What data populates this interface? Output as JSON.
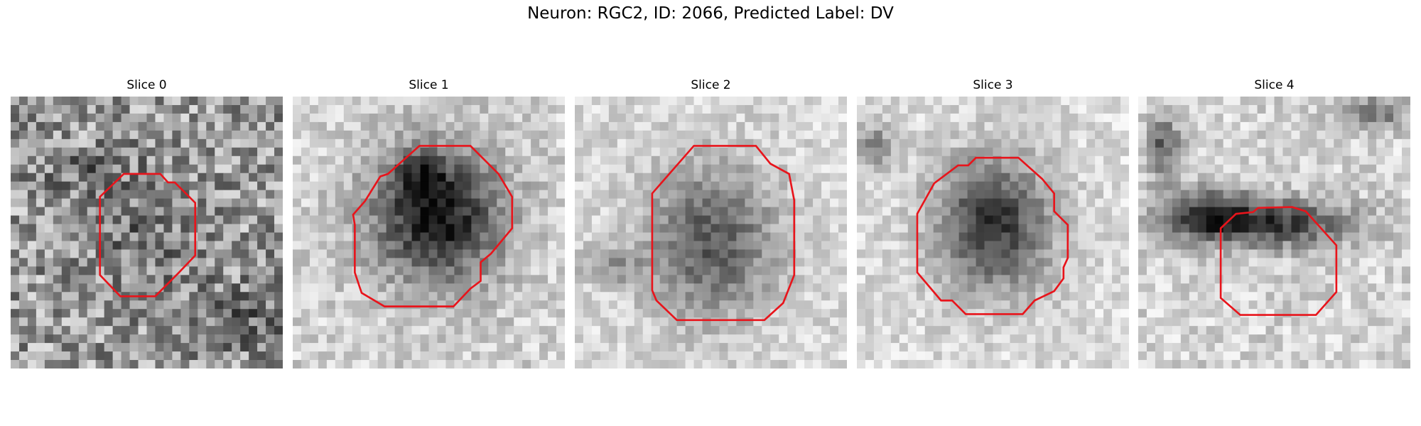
{
  "figure": {
    "title": "Neuron: RGC2, ID: 2066, Predicted Label: DV"
  },
  "colors": {
    "contour": "#e8141b",
    "background": "#ffffff"
  },
  "panels": [
    {
      "title": "Slice 0"
    },
    {
      "title": "Slice 1"
    },
    {
      "title": "Slice 2"
    },
    {
      "title": "Slice 3"
    },
    {
      "title": "Slice 4"
    }
  ]
}
